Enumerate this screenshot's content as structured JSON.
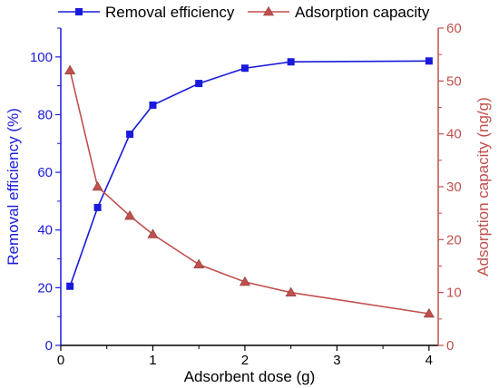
{
  "chart_data": {
    "type": "line",
    "x": [
      0.1,
      0.4,
      0.75,
      1.0,
      1.5,
      2.0,
      2.5,
      4.0
    ],
    "xlabel": "Adsorbent dose (g)",
    "xlim": [
      0,
      4.1
    ],
    "xticks": [
      "0",
      "1",
      "2",
      "3",
      "4"
    ],
    "left_axis": {
      "label": "Removal efficiency (%)",
      "ylim": [
        0,
        110
      ],
      "ticks": [
        "0",
        "20",
        "40",
        "60",
        "80",
        "100"
      ],
      "color": "#1a1adc"
    },
    "right_axis": {
      "label": "Adsorption capacity (ng/g)",
      "ylim": [
        0,
        60
      ],
      "ticks": [
        "0",
        "10",
        "20",
        "30",
        "40",
        "50",
        "60"
      ],
      "color": "#c0504d"
    },
    "series": [
      {
        "name": "Removal efficiency",
        "axis": "left",
        "marker": "square",
        "color": "#1a1adc",
        "values": [
          20.5,
          47.8,
          73.2,
          83.3,
          90.8,
          96.1,
          98.3,
          98.6
        ]
      },
      {
        "name": "Adsorption capacity",
        "axis": "right",
        "marker": "triangle",
        "color": "#c0504d",
        "values": [
          52.0,
          30.0,
          24.5,
          21.0,
          15.3,
          12.0,
          10.0,
          6.0
        ]
      }
    ],
    "legend_position": "top",
    "grid": false
  }
}
